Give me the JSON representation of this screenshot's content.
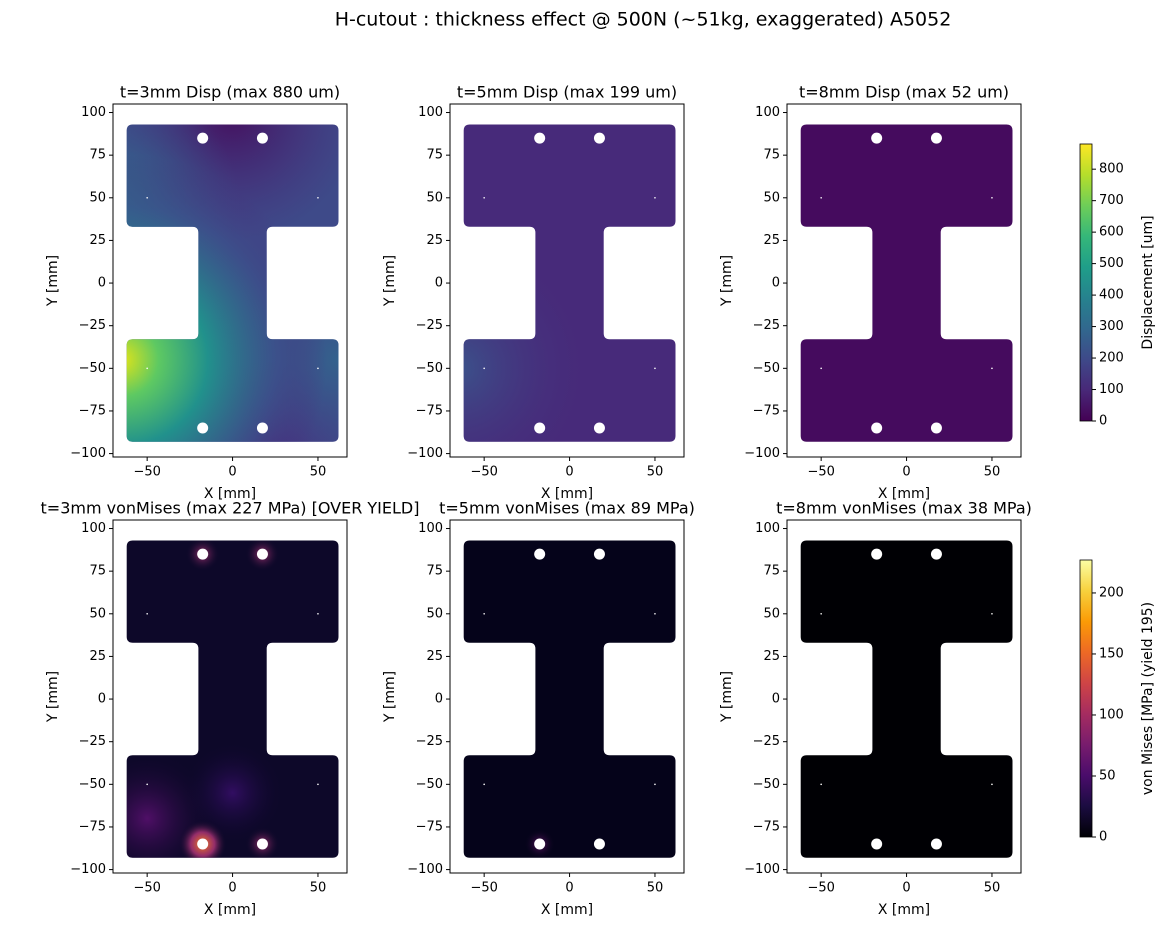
{
  "title": "H-cutout : thickness effect @ 500N (~51kg, exaggerated)  A5052",
  "chart_data": [
    {
      "type": "field",
      "title": "t=3mm  Disp  (max 880 um)",
      "xlabel": "X [mm]",
      "ylabel": "Y [mm]",
      "color": "#3e4a89",
      "xlim": [
        -70,
        67
      ],
      "ylim": [
        -102,
        105
      ],
      "xticks": [
        {
          "value": -50,
          "label": "−50"
        },
        0,
        50
      ],
      "yticks": [
        {
          "value": -100,
          "label": "−100"
        },
        {
          "value": -75,
          "label": "−75"
        },
        {
          "value": -50,
          "label": "−50"
        },
        {
          "value": -25,
          "label": "−25"
        },
        0,
        25,
        50,
        75,
        100
      ]
    },
    {
      "type": "field",
      "title": "t=5mm  Disp  (max 199 um)",
      "xlabel": "X [mm]",
      "ylabel": "Y [mm]",
      "color": "#472a7a",
      "xlim": [
        -70,
        67
      ],
      "ylim": [
        -102,
        105
      ],
      "xticks": [
        {
          "value": -50,
          "label": "−50"
        },
        0,
        50
      ],
      "yticks": [
        {
          "value": -100,
          "label": "−100"
        },
        {
          "value": -75,
          "label": "−75"
        },
        {
          "value": -50,
          "label": "−50"
        },
        {
          "value": -25,
          "label": "−25"
        },
        0,
        25,
        50,
        75,
        100
      ]
    },
    {
      "type": "field",
      "title": "t=8mm  Disp  (max 52 um)",
      "xlabel": "X [mm]",
      "ylabel": "Y [mm]",
      "color": "#450b5e",
      "xlim": [
        -70,
        67
      ],
      "ylim": [
        -102,
        105
      ],
      "xticks": [
        {
          "value": -50,
          "label": "−50"
        },
        0,
        50
      ],
      "yticks": [
        {
          "value": -100,
          "label": "−100"
        },
        {
          "value": -75,
          "label": "−75"
        },
        {
          "value": -50,
          "label": "−50"
        },
        {
          "value": -25,
          "label": "−25"
        },
        0,
        25,
        50,
        75,
        100
      ]
    },
    {
      "type": "field",
      "title": "t=3mm  vonMises  (max 227 MPa)  [OVER YIELD]",
      "xlabel": "X [mm]",
      "ylabel": "Y [mm]",
      "color": "#0d0829",
      "xlim": [
        -70,
        67
      ],
      "ylim": [
        -102,
        105
      ],
      "xticks": [
        {
          "value": -50,
          "label": "−50"
        },
        0,
        50
      ],
      "yticks": [
        {
          "value": -100,
          "label": "−100"
        },
        {
          "value": -75,
          "label": "−75"
        },
        {
          "value": -50,
          "label": "−50"
        },
        {
          "value": -25,
          "label": "−25"
        },
        0,
        25,
        50,
        75,
        100
      ]
    },
    {
      "type": "field",
      "title": "t=5mm  vonMises  (max 89 MPa)",
      "xlabel": "X [mm]",
      "ylabel": "Y [mm]",
      "color": "#05031a",
      "xlim": [
        -70,
        67
      ],
      "ylim": [
        -102,
        105
      ],
      "xticks": [
        {
          "value": -50,
          "label": "−50"
        },
        0,
        50
      ],
      "yticks": [
        {
          "value": -100,
          "label": "−100"
        },
        {
          "value": -75,
          "label": "−75"
        },
        {
          "value": -50,
          "label": "−50"
        },
        {
          "value": -25,
          "label": "−25"
        },
        0,
        25,
        50,
        75,
        100
      ]
    },
    {
      "type": "field",
      "title": "t=8mm  vonMises  (max 38 MPa)",
      "xlabel": "X [mm]",
      "ylabel": "Y [mm]",
      "color": "#000004",
      "xlim": [
        -70,
        67
      ],
      "ylim": [
        -102,
        105
      ],
      "xticks": [
        {
          "value": -50,
          "label": "−50"
        },
        0,
        50
      ],
      "yticks": [
        {
          "value": -100,
          "label": "−100"
        },
        {
          "value": -75,
          "label": "−75"
        },
        {
          "value": -50,
          "label": "−50"
        },
        {
          "value": -25,
          "label": "−25"
        },
        0,
        25,
        50,
        75,
        100
      ]
    },
    {
      "type": "colorbar",
      "label": "Displacement [um]",
      "ylim": [
        0,
        880
      ],
      "yticks": [
        0,
        100,
        200,
        300,
        400,
        500,
        600,
        700,
        800
      ],
      "colors": [
        "#440154",
        "#482878",
        "#3e4989",
        "#31688e",
        "#26828e",
        "#1f9e89",
        "#35b779",
        "#6ece58",
        "#b5de2b",
        "#fde725"
      ]
    },
    {
      "type": "colorbar",
      "label": "von Mises [MPa] (yield 195)",
      "ylim": [
        0,
        227
      ],
      "yticks": [
        0,
        50,
        100,
        150,
        200
      ],
      "colors": [
        "#000004",
        "#1b0c41",
        "#4a0c6b",
        "#781c6d",
        "#a52c60",
        "#cf4446",
        "#ed6925",
        "#fb9b06",
        "#f7d13d",
        "#fcffa4"
      ]
    }
  ]
}
